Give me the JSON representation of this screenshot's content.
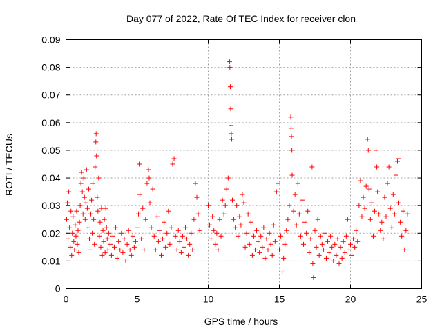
{
  "chart_data": {
    "type": "scatter",
    "title": "Day 077 of 2022, Rate Of TEC Index for receiver clon",
    "xlabel": "GPS time / hours",
    "ylabel": "ROTI / TECUs",
    "xlim": [
      0,
      25
    ],
    "ylim": [
      0,
      0.09
    ],
    "xticks": [
      0,
      5,
      10,
      15,
      20,
      25
    ],
    "yticks": [
      0,
      0.01,
      0.02,
      0.03,
      0.04,
      0.05,
      0.06,
      0.07,
      0.08,
      0.09
    ],
    "grid": true,
    "marker": "plus",
    "color": "#ff0000",
    "series": [
      {
        "points": [
          [
            0.05,
            0.025
          ],
          [
            0.1,
            0.031
          ],
          [
            0.15,
            0.018
          ],
          [
            0.2,
            0.035
          ],
          [
            0.25,
            0.022
          ],
          [
            0.3,
            0.015
          ],
          [
            0.35,
            0.028
          ],
          [
            0.4,
            0.012
          ],
          [
            0.45,
            0.02
          ],
          [
            0.5,
            0.026
          ],
          [
            0.55,
            0.017
          ],
          [
            0.6,
            0.014
          ],
          [
            0.65,
            0.023
          ],
          [
            0.7,
            0.019
          ],
          [
            0.75,
            0.028
          ],
          [
            0.8,
            0.016
          ],
          [
            0.85,
            0.021
          ],
          [
            0.9,
            0.013
          ],
          [
            0.95,
            0.024
          ],
          [
            1.0,
            0.03
          ],
          [
            1.05,
            0.038
          ],
          [
            1.1,
            0.042
          ],
          [
            1.15,
            0.035
          ],
          [
            1.2,
            0.027
          ],
          [
            1.25,
            0.04
          ],
          [
            1.3,
            0.033
          ],
          [
            1.35,
            0.025
          ],
          [
            1.4,
            0.031
          ],
          [
            1.45,
            0.043
          ],
          [
            1.5,
            0.029
          ],
          [
            1.55,
            0.022
          ],
          [
            1.6,
            0.036
          ],
          [
            1.65,
            0.018
          ],
          [
            1.7,
            0.014
          ],
          [
            1.75,
            0.027
          ],
          [
            1.8,
            0.032
          ],
          [
            1.85,
            0.02
          ],
          [
            1.9,
            0.038
          ],
          [
            1.95,
            0.025
          ],
          [
            2.0,
            0.016
          ],
          [
            2.05,
            0.044
          ],
          [
            2.1,
            0.053
          ],
          [
            2.12,
            0.056
          ],
          [
            2.15,
            0.048
          ],
          [
            2.2,
            0.033
          ],
          [
            2.25,
            0.028
          ],
          [
            2.3,
            0.04
          ],
          [
            2.35,
            0.019
          ],
          [
            2.4,
            0.024
          ],
          [
            2.45,
            0.015
          ],
          [
            2.5,
            0.029
          ],
          [
            2.55,
            0.012
          ],
          [
            2.6,
            0.021
          ],
          [
            2.65,
            0.017
          ],
          [
            2.7,
            0.025
          ],
          [
            2.75,
            0.013
          ],
          [
            2.8,
            0.029
          ],
          [
            2.85,
            0.022
          ],
          [
            2.9,
            0.018
          ],
          [
            2.95,
            0.014
          ],
          [
            3.0,
            0.02
          ],
          [
            3.1,
            0.016
          ],
          [
            3.2,
            0.012
          ],
          [
            3.3,
            0.019
          ],
          [
            3.4,
            0.015
          ],
          [
            3.5,
            0.022
          ],
          [
            3.6,
            0.011
          ],
          [
            3.7,
            0.017
          ],
          [
            3.8,
            0.014
          ],
          [
            3.9,
            0.02
          ],
          [
            4.0,
            0.013
          ],
          [
            4.1,
            0.018
          ],
          [
            4.2,
            0.01
          ],
          [
            4.3,
            0.016
          ],
          [
            4.4,
            0.021
          ],
          [
            4.5,
            0.014
          ],
          [
            4.6,
            0.012
          ],
          [
            4.7,
            0.019
          ],
          [
            4.8,
            0.015
          ],
          [
            4.9,
            0.017
          ],
          [
            5.0,
            0.022
          ],
          [
            5.1,
            0.027
          ],
          [
            5.15,
            0.045
          ],
          [
            5.2,
            0.034
          ],
          [
            5.3,
            0.018
          ],
          [
            5.4,
            0.029
          ],
          [
            5.5,
            0.014
          ],
          [
            5.6,
            0.025
          ],
          [
            5.7,
            0.038
          ],
          [
            5.8,
            0.043
          ],
          [
            5.85,
            0.04
          ],
          [
            5.9,
            0.031
          ],
          [
            6.0,
            0.022
          ],
          [
            6.1,
            0.036
          ],
          [
            6.2,
            0.019
          ],
          [
            6.3,
            0.014
          ],
          [
            6.4,
            0.026
          ],
          [
            6.5,
            0.017
          ],
          [
            6.6,
            0.021
          ],
          [
            6.7,
            0.012
          ],
          [
            6.8,
            0.018
          ],
          [
            6.9,
            0.024
          ],
          [
            7.0,
            0.015
          ],
          [
            7.1,
            0.02
          ],
          [
            7.2,
            0.028
          ],
          [
            7.3,
            0.016
          ],
          [
            7.4,
            0.022
          ],
          [
            7.5,
            0.045
          ],
          [
            7.6,
            0.047
          ],
          [
            7.7,
            0.019
          ],
          [
            7.8,
            0.014
          ],
          [
            7.9,
            0.021
          ],
          [
            8.0,
            0.017
          ],
          [
            8.1,
            0.013
          ],
          [
            8.2,
            0.019
          ],
          [
            8.3,
            0.015
          ],
          [
            8.4,
            0.022
          ],
          [
            8.5,
            0.018
          ],
          [
            8.6,
            0.012
          ],
          [
            8.7,
            0.016
          ],
          [
            8.8,
            0.02
          ],
          [
            8.9,
            0.014
          ],
          [
            9.0,
            0.025
          ],
          [
            9.1,
            0.038
          ],
          [
            9.2,
            0.033
          ],
          [
            9.3,
            0.027
          ],
          [
            9.4,
            0.021
          ],
          [
            10.0,
            0.03
          ],
          [
            10.1,
            0.023
          ],
          [
            10.2,
            0.018
          ],
          [
            10.3,
            0.026
          ],
          [
            10.4,
            0.021
          ],
          [
            10.5,
            0.016
          ],
          [
            10.6,
            0.02
          ],
          [
            10.7,
            0.014
          ],
          [
            10.8,
            0.025
          ],
          [
            10.9,
            0.019
          ],
          [
            11.0,
            0.032
          ],
          [
            11.1,
            0.027
          ],
          [
            11.2,
            0.03
          ],
          [
            11.3,
            0.036
          ],
          [
            11.4,
            0.04
          ],
          [
            11.5,
            0.082
          ],
          [
            11.52,
            0.08
          ],
          [
            11.55,
            0.073
          ],
          [
            11.58,
            0.065
          ],
          [
            11.6,
            0.059
          ],
          [
            11.62,
            0.056
          ],
          [
            11.65,
            0.054
          ],
          [
            11.7,
            0.032
          ],
          [
            11.8,
            0.025
          ],
          [
            11.9,
            0.022
          ],
          [
            12.0,
            0.03
          ],
          [
            12.1,
            0.019
          ],
          [
            12.2,
            0.026
          ],
          [
            12.3,
            0.023
          ],
          [
            12.4,
            0.034
          ],
          [
            12.5,
            0.031
          ],
          [
            12.6,
            0.015
          ],
          [
            12.7,
            0.02
          ],
          [
            12.8,
            0.027
          ],
          [
            12.9,
            0.016
          ],
          [
            13.0,
            0.024
          ],
          [
            13.1,
            0.012
          ],
          [
            13.2,
            0.019
          ],
          [
            13.3,
            0.014
          ],
          [
            13.4,
            0.021
          ],
          [
            13.5,
            0.017
          ],
          [
            13.6,
            0.013
          ],
          [
            13.7,
            0.019
          ],
          [
            13.8,
            0.015
          ],
          [
            13.9,
            0.022
          ],
          [
            14.0,
            0.011
          ],
          [
            14.1,
            0.018
          ],
          [
            14.2,
            0.014
          ],
          [
            14.3,
            0.02
          ],
          [
            14.4,
            0.016
          ],
          [
            14.5,
            0.012
          ],
          [
            14.6,
            0.023
          ],
          [
            14.7,
            0.017
          ],
          [
            14.8,
            0.035
          ],
          [
            14.9,
            0.038
          ],
          [
            15.0,
            0.014
          ],
          [
            15.1,
            0.019
          ],
          [
            15.2,
            0.006
          ],
          [
            15.3,
            0.011
          ],
          [
            15.4,
            0.016
          ],
          [
            15.5,
            0.021
          ],
          [
            15.6,
            0.025
          ],
          [
            15.7,
            0.03
          ],
          [
            15.8,
            0.062
          ],
          [
            15.82,
            0.058
          ],
          [
            15.85,
            0.055
          ],
          [
            15.88,
            0.05
          ],
          [
            15.9,
            0.041
          ],
          [
            16.0,
            0.028
          ],
          [
            16.1,
            0.034
          ],
          [
            16.2,
            0.023
          ],
          [
            16.3,
            0.038
          ],
          [
            16.4,
            0.027
          ],
          [
            16.5,
            0.019
          ],
          [
            16.6,
            0.032
          ],
          [
            16.7,
            0.016
          ],
          [
            16.8,
            0.024
          ],
          [
            16.9,
            0.02
          ],
          [
            17.0,
            0.028
          ],
          [
            17.1,
            0.013
          ],
          [
            17.2,
            0.018
          ],
          [
            17.3,
            0.044
          ],
          [
            17.35,
            0.009
          ],
          [
            17.4,
            0.004
          ],
          [
            17.5,
            0.021
          ],
          [
            17.6,
            0.015
          ],
          [
            17.7,
            0.025
          ],
          [
            17.8,
            0.012
          ],
          [
            17.9,
            0.019
          ],
          [
            18.0,
            0.016
          ],
          [
            18.1,
            0.014
          ],
          [
            18.2,
            0.02
          ],
          [
            18.3,
            0.011
          ],
          [
            18.4,
            0.017
          ],
          [
            18.5,
            0.013
          ],
          [
            18.6,
            0.019
          ],
          [
            18.7,
            0.015
          ],
          [
            18.8,
            0.01
          ],
          [
            18.9,
            0.016
          ],
          [
            19.0,
            0.012
          ],
          [
            19.1,
            0.018
          ],
          [
            19.2,
            0.009
          ],
          [
            19.3,
            0.015
          ],
          [
            19.4,
            0.011
          ],
          [
            19.5,
            0.017
          ],
          [
            19.6,
            0.013
          ],
          [
            19.7,
            0.019
          ],
          [
            19.8,
            0.025
          ],
          [
            19.9,
            0.014
          ],
          [
            20.0,
            0.016
          ],
          [
            20.1,
            0.012
          ],
          [
            20.2,
            0.018
          ],
          [
            20.3,
            0.015
          ],
          [
            20.4,
            0.021
          ],
          [
            20.5,
            0.017
          ],
          [
            20.6,
            0.03
          ],
          [
            20.7,
            0.039
          ],
          [
            20.8,
            0.026
          ],
          [
            20.9,
            0.033
          ],
          [
            21.0,
            0.029
          ],
          [
            21.1,
            0.037
          ],
          [
            21.2,
            0.054
          ],
          [
            21.25,
            0.05
          ],
          [
            21.3,
            0.036
          ],
          [
            21.4,
            0.025
          ],
          [
            21.5,
            0.031
          ],
          [
            21.6,
            0.019
          ],
          [
            21.7,
            0.028
          ],
          [
            21.8,
            0.05
          ],
          [
            21.85,
            0.044
          ],
          [
            21.9,
            0.035
          ],
          [
            22.0,
            0.027
          ],
          [
            22.1,
            0.021
          ],
          [
            22.2,
            0.024
          ],
          [
            22.3,
            0.018
          ],
          [
            22.4,
            0.033
          ],
          [
            22.5,
            0.026
          ],
          [
            22.6,
            0.038
          ],
          [
            22.7,
            0.044
          ],
          [
            22.8,
            0.029
          ],
          [
            22.9,
            0.022
          ],
          [
            23.0,
            0.034
          ],
          [
            23.1,
            0.027
          ],
          [
            23.2,
            0.041
          ],
          [
            23.3,
            0.046
          ],
          [
            23.35,
            0.047
          ],
          [
            23.4,
            0.031
          ],
          [
            23.5,
            0.024
          ],
          [
            23.6,
            0.019
          ],
          [
            23.7,
            0.028
          ],
          [
            23.8,
            0.014
          ],
          [
            23.9,
            0.021
          ],
          [
            24.0,
            0.027
          ]
        ]
      }
    ]
  }
}
